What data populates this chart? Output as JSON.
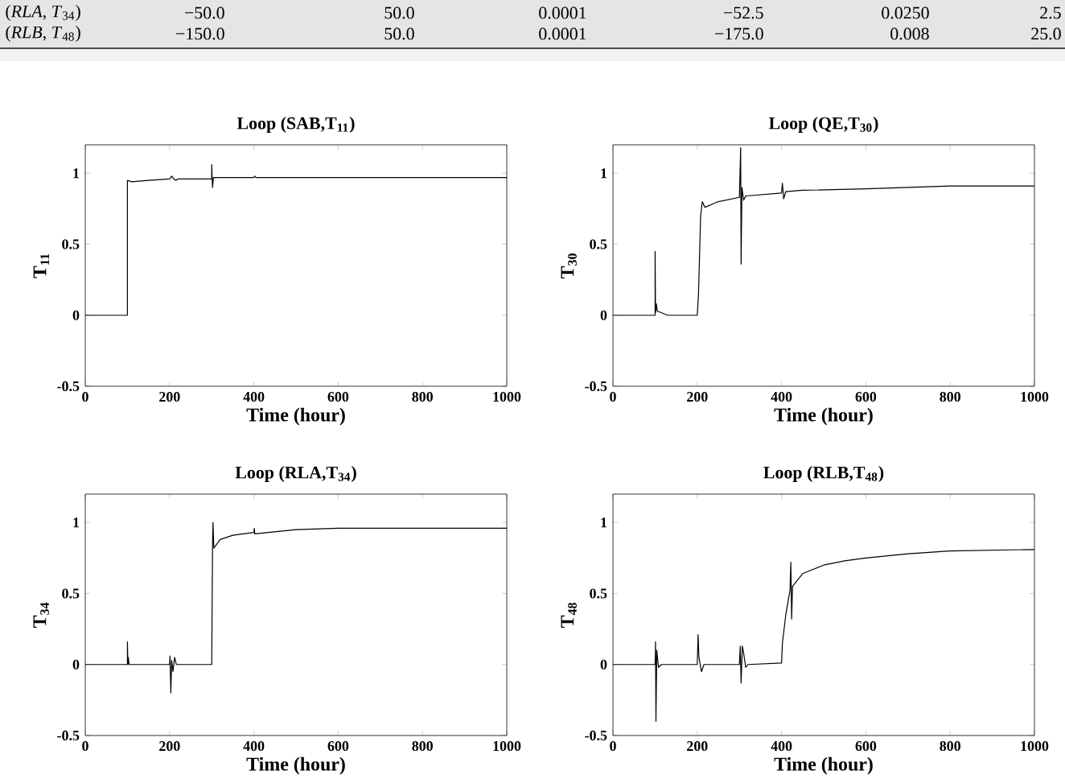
{
  "chart_data": [
    {
      "type": "other",
      "annotations": [
        "(*RLA*, *T*$_{34}$)",
        "−50.0",
        "50.0",
        "0.0001",
        "−52.5",
        "0.0250",
        "2.5",
        "(*RLB*, *T*$_{48}$)",
        "−150.0",
        "50.0",
        "0.0001",
        "−175.0",
        "0.008",
        "25.0"
      ]
    },
    {
      "type": "line",
      "title": "Loop (SAB,T$_{11}$)",
      "xlabel": "Time (hour)",
      "ylabel": "T$_{11}$",
      "marker": "none",
      "xlim": [
        0,
        1000
      ],
      "ylim": [
        -0.5,
        1.2
      ],
      "xticks": [
        0,
        200,
        400,
        600,
        800,
        1000
      ],
      "yticks": [
        -0.5,
        0,
        0.5,
        1
      ],
      "series": [
        {
          "color": "#000000",
          "x": [
            0,
            100,
            100,
            110,
            150,
            200,
            205,
            210,
            215,
            220,
            300,
            300,
            301,
            302,
            304,
            400,
            402,
            405,
            1000
          ],
          "values": [
            0,
            0,
            0.95,
            0.94,
            0.95,
            0.96,
            0.98,
            0.96,
            0.95,
            0.96,
            0.96,
            1.06,
            0.96,
            0.9,
            0.97,
            0.97,
            0.98,
            0.97,
            0.97
          ]
        }
      ]
    },
    {
      "type": "line",
      "title": "Loop (QE,T$_{30}$)",
      "xlabel": "Time (hour)",
      "ylabel": "T$_{30}$",
      "marker": "none",
      "xlim": [
        0,
        1000
      ],
      "ylim": [
        -0.5,
        1.2
      ],
      "xticks": [
        0,
        200,
        400,
        600,
        800,
        1000
      ],
      "yticks": [
        -0.5,
        0,
        0.5,
        1
      ],
      "series": [
        {
          "color": "#000000",
          "x": [
            0,
            100,
            100,
            101,
            103,
            105,
            130,
            200,
            201,
            203,
            208,
            212,
            218,
            250,
            300,
            303,
            304,
            306,
            310,
            315,
            400,
            402,
            405,
            410,
            450,
            600,
            800,
            1000
          ],
          "values": [
            0,
            0,
            0.45,
            0.02,
            0.08,
            0.03,
            0,
            0,
            0.05,
            0.15,
            0.7,
            0.8,
            0.76,
            0.8,
            0.83,
            1.18,
            0.36,
            0.9,
            0.81,
            0.84,
            0.86,
            0.93,
            0.82,
            0.87,
            0.88,
            0.89,
            0.91,
            0.91
          ]
        }
      ]
    },
    {
      "type": "line",
      "title": "Loop (RLA,T$_{34}$)",
      "xlabel": "Time (hour)",
      "ylabel": "T$_{34}$",
      "marker": "none",
      "xlim": [
        0,
        1000
      ],
      "ylim": [
        -0.5,
        1.2
      ],
      "xticks": [
        0,
        200,
        400,
        600,
        800,
        1000
      ],
      "yticks": [
        -0.5,
        0,
        0.5,
        1
      ],
      "series": [
        {
          "color": "#000000",
          "x": [
            0,
            100,
            100,
            101,
            102,
            104,
            200,
            201,
            203,
            205,
            208,
            212,
            216,
            300,
            302,
            303,
            305,
            320,
            350,
            400,
            401,
            402,
            500,
            600,
            1000
          ],
          "values": [
            0,
            0,
            0.16,
            0,
            0.05,
            0,
            0,
            0.06,
            -0.2,
            0.03,
            -0.05,
            0.05,
            0,
            0,
            0.85,
            1.0,
            0.82,
            0.88,
            0.91,
            0.93,
            0.96,
            0.92,
            0.95,
            0.96,
            0.96
          ]
        }
      ]
    },
    {
      "type": "line",
      "title": "Loop (RLB,T$_{48}$)",
      "xlabel": "Time (hour)",
      "ylabel": "T$_{48}$",
      "marker": "none",
      "xlim": [
        0,
        1000
      ],
      "ylim": [
        -0.5,
        1.2
      ],
      "xticks": [
        0,
        200,
        400,
        600,
        800,
        1000
      ],
      "yticks": [
        -0.5,
        0,
        0.5,
        1
      ],
      "series": [
        {
          "color": "#000000",
          "x": [
            0,
            100,
            101,
            102,
            104,
            108,
            115,
            200,
            202,
            204,
            210,
            216,
            300,
            302,
            304,
            307,
            310,
            315,
            320,
            400,
            402,
            410,
            420,
            422,
            424,
            426,
            450,
            500,
            550,
            600,
            700,
            800,
            1000
          ],
          "values": [
            0,
            0,
            0.16,
            -0.4,
            0.1,
            -0.02,
            0,
            0,
            0.21,
            0.05,
            -0.05,
            0,
            0,
            0.13,
            -0.13,
            0.13,
            0.08,
            -0.02,
            0,
            0.01,
            0.15,
            0.35,
            0.52,
            0.72,
            0.32,
            0.55,
            0.64,
            0.7,
            0.73,
            0.75,
            0.78,
            0.8,
            0.81
          ]
        }
      ]
    }
  ]
}
